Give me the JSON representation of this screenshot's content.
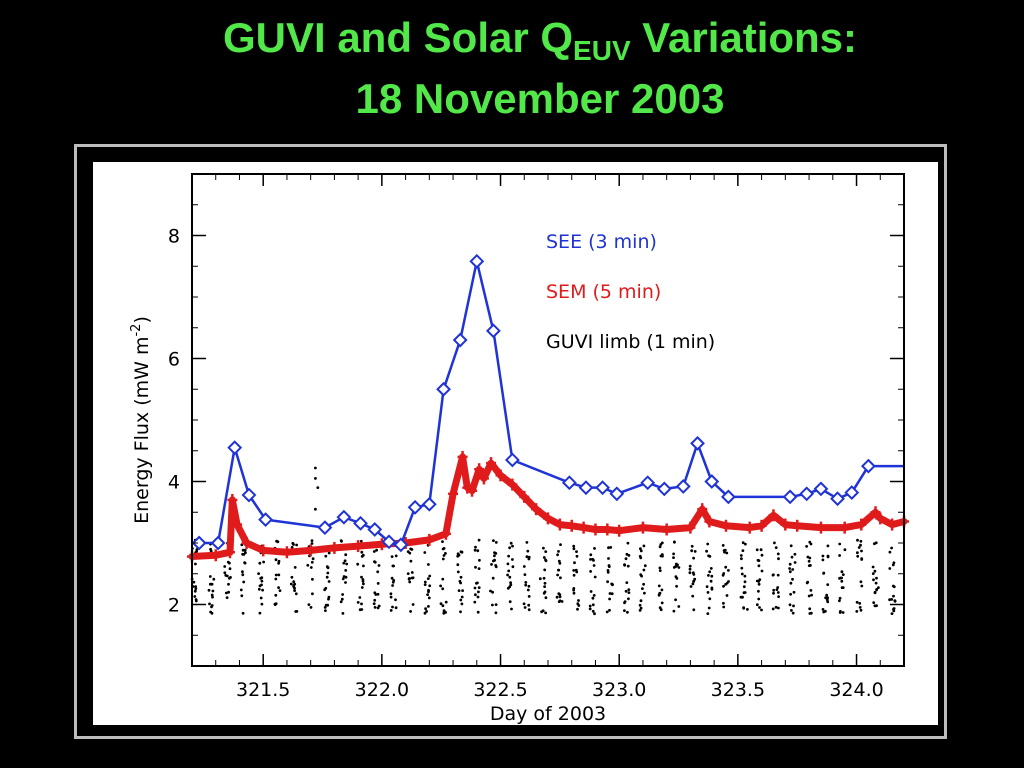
{
  "slide": {
    "title_main": "GUVI and Solar Q",
    "title_subscript": "EUV",
    "title_after": " Variations:",
    "title_line2": "18 November 2003"
  },
  "colors": {
    "title": "#52e84a",
    "background": "#000000",
    "see": "#1f33d6",
    "sem": "#e01b1b",
    "guvi": "#000000"
  },
  "chart_data": {
    "type": "line",
    "xlabel": "Day of 2003",
    "ylabel": "Energy Flux (mW m",
    "ylabel_sup": "-2",
    "ylabel_close": ")",
    "xlim": [
      321.2,
      324.2
    ],
    "ylim": [
      1.0,
      9.0
    ],
    "xticks": [
      321.5,
      322.0,
      322.5,
      323.0,
      323.5,
      324.0
    ],
    "xtick_labels": [
      "321.5",
      "322.0",
      "322.5",
      "323.0",
      "323.5",
      "324.0"
    ],
    "yticks": [
      2,
      4,
      6,
      8
    ],
    "ytick_labels": [
      "2",
      "4",
      "6",
      "8"
    ],
    "grid": false,
    "legend_placement": "top-right",
    "series": [
      {
        "name": "SEE (3 min)",
        "marker": "diamond",
        "x": [
          321.23,
          321.31,
          321.38,
          321.44,
          321.51,
          321.76,
          321.84,
          321.91,
          321.97,
          322.03,
          322.08,
          322.14,
          322.2,
          322.26,
          322.33,
          322.4,
          322.47,
          322.55,
          322.79,
          322.86,
          322.93,
          322.99,
          323.12,
          323.19,
          323.27,
          323.33,
          323.39,
          323.46,
          323.72,
          323.79,
          323.85,
          323.92,
          323.98,
          324.05,
          324.2
        ],
        "y": [
          3.0,
          3.0,
          4.55,
          3.78,
          3.38,
          3.25,
          3.42,
          3.32,
          3.22,
          3.02,
          2.97,
          3.58,
          3.63,
          5.5,
          6.3,
          7.58,
          6.45,
          4.35,
          3.98,
          3.9,
          3.9,
          3.8,
          3.98,
          3.88,
          3.92,
          4.62,
          4.0,
          3.75,
          3.75,
          3.8,
          3.88,
          3.72,
          3.82,
          4.25,
          4.25
        ]
      },
      {
        "name": "SEM (5 min)",
        "marker": "plus",
        "x": [
          321.2,
          321.3,
          321.36,
          321.37,
          321.39,
          321.43,
          321.5,
          321.6,
          321.7,
          321.8,
          321.9,
          322.0,
          322.1,
          322.2,
          322.27,
          322.3,
          322.34,
          322.36,
          322.38,
          322.41,
          322.43,
          322.46,
          322.5,
          322.55,
          322.6,
          322.65,
          322.7,
          322.75,
          322.8,
          322.85,
          322.9,
          322.95,
          323.0,
          323.1,
          323.2,
          323.3,
          323.35,
          323.38,
          323.45,
          323.55,
          323.6,
          323.65,
          323.7,
          323.75,
          323.85,
          323.95,
          324.02,
          324.08,
          324.1,
          324.15,
          324.2
        ],
        "y": [
          2.78,
          2.8,
          2.85,
          3.7,
          3.3,
          3.0,
          2.88,
          2.85,
          2.88,
          2.92,
          2.95,
          2.98,
          3.0,
          3.05,
          3.15,
          3.8,
          4.4,
          3.9,
          3.85,
          4.2,
          4.05,
          4.3,
          4.1,
          3.95,
          3.75,
          3.55,
          3.4,
          3.3,
          3.28,
          3.25,
          3.22,
          3.22,
          3.2,
          3.25,
          3.22,
          3.25,
          3.55,
          3.35,
          3.28,
          3.25,
          3.28,
          3.45,
          3.3,
          3.28,
          3.25,
          3.25,
          3.3,
          3.5,
          3.4,
          3.3,
          3.35
        ]
      },
      {
        "name": "GUVI limb (1 min)",
        "marker": "dot",
        "x_start": 321.21,
        "x_end": 324.2,
        "orbit_period": 0.07,
        "y_envelope": [
          1.85,
          3.05
        ]
      }
    ]
  }
}
